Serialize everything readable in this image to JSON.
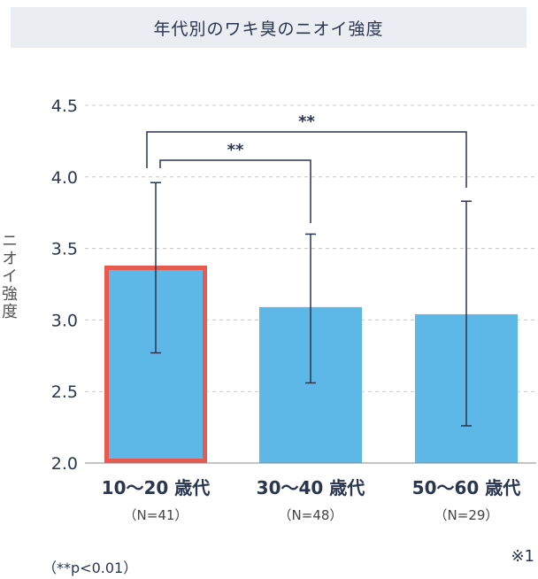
{
  "title": "年代別のワキ臭のニオイ強度",
  "footnote": "（**p<0.01）",
  "note": "※1",
  "colors": {
    "bar": "#5db8e8",
    "highlight": "#e85a4f",
    "line": "#2a3550",
    "grid": "#c8c8c8"
  },
  "chart_data": {
    "type": "bar",
    "title": "年代別のワキ臭のニオイ強度",
    "ylabel": "ニオイ強度",
    "xlabel": "",
    "ylim": [
      2.0,
      4.5
    ],
    "yticks": [
      "2.0",
      "2.5",
      "3.0",
      "3.5",
      "4.0",
      "4.5"
    ],
    "grid": true,
    "categories": [
      "10〜20 歳代",
      "30〜40 歳代",
      "50〜60 歳代"
    ],
    "sample_sizes": [
      "（N=41）",
      "（N=48）",
      "（N=29）"
    ],
    "values": [
      3.38,
      3.09,
      3.04
    ],
    "error_upper": [
      3.96,
      3.6,
      3.83
    ],
    "error_lower": [
      2.77,
      2.56,
      2.26
    ],
    "highlight_index": 0,
    "significance": [
      {
        "from": 0,
        "to": 1,
        "label": "**"
      },
      {
        "from": 0,
        "to": 2,
        "label": "**"
      }
    ]
  }
}
